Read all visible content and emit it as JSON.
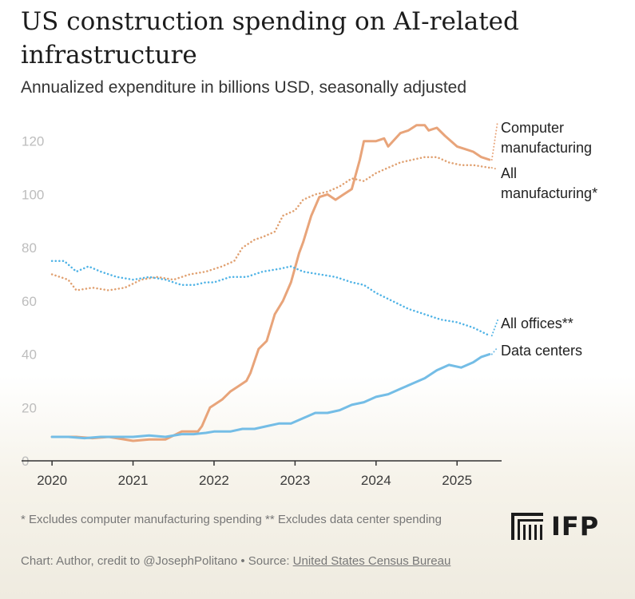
{
  "title": "US construction spending on AI-related infrastructure",
  "subtitle": "Annualized expenditure in billions USD, seasonally adjusted",
  "footnote": "* Excludes computer manufacturing spending ** Excludes data center spending",
  "credit": {
    "prefix": "Chart: Author, credit to @JosephPolitano • Source: ",
    "source_link": "United States Census Bureau"
  },
  "logo": {
    "text": "IFP"
  },
  "colors": {
    "computer_manufacturing": "#e8a47a",
    "all_manufacturing": "#e0a070",
    "all_offices": "#4fb3e6",
    "data_centers": "#74bde6",
    "axis": "#333333",
    "tick": "#bdbdbd"
  },
  "chart_data": {
    "type": "line",
    "title": "US construction spending on AI-related infrastructure",
    "ylabel": "Annualized expenditure in billions USD, seasonally adjusted",
    "xlabel": "",
    "ylim": [
      0,
      125
    ],
    "xlim": [
      2019.9,
      2025.55
    ],
    "yticks": [
      0,
      20,
      40,
      60,
      80,
      100,
      120
    ],
    "xticks": [
      "2020",
      "2021",
      "2022",
      "2023",
      "2024",
      "2025"
    ],
    "series": [
      {
        "name": "Computer manufacturing",
        "style": "solid",
        "x": [
          2020.0,
          2020.3,
          2020.5,
          2020.7,
          2021.0,
          2021.2,
          2021.4,
          2021.6,
          2021.7,
          2021.8,
          2021.85,
          2021.95,
          2022.1,
          2022.2,
          2022.3,
          2022.4,
          2022.45,
          2022.55,
          2022.65,
          2022.75,
          2022.85,
          2022.95,
          2023.05,
          2023.1,
          2023.2,
          2023.3,
          2023.4,
          2023.5,
          2023.6,
          2023.7,
          2023.8,
          2023.85,
          2024.0,
          2024.1,
          2024.15,
          2024.3,
          2024.4,
          2024.5,
          2024.6,
          2024.65,
          2024.75,
          2024.85,
          2025.0,
          2025.1,
          2025.2,
          2025.3,
          2025.4
        ],
        "y": [
          9,
          9,
          8.5,
          9,
          7.5,
          8,
          8,
          11,
          11,
          11,
          13,
          20,
          23,
          26,
          28,
          30,
          33,
          42,
          45,
          55,
          60,
          67,
          78,
          82,
          92,
          99,
          100,
          98,
          100,
          102,
          113,
          120,
          120,
          121,
          118,
          123,
          124,
          126,
          126,
          124,
          125,
          122,
          118,
          117,
          116,
          114,
          113
        ]
      },
      {
        "name": "All manufacturing",
        "style": "dotted",
        "x": [
          2020.0,
          2020.2,
          2020.3,
          2020.5,
          2020.7,
          2020.9,
          2021.1,
          2021.3,
          2021.5,
          2021.7,
          2021.9,
          2022.1,
          2022.25,
          2022.35,
          2022.5,
          2022.6,
          2022.75,
          2022.85,
          2023.0,
          2023.1,
          2023.25,
          2023.4,
          2023.55,
          2023.7,
          2023.85,
          2024.0,
          2024.15,
          2024.3,
          2024.45,
          2024.6,
          2024.75,
          2024.9,
          2025.05,
          2025.2,
          2025.4
        ],
        "y": [
          70,
          68,
          64,
          65,
          64,
          65,
          68,
          69,
          68,
          70,
          71,
          73,
          75,
          80,
          83,
          84,
          86,
          92,
          94,
          98,
          100,
          101,
          103,
          106,
          105,
          108,
          110,
          112,
          113,
          114,
          114,
          112,
          111,
          111,
          110
        ]
      },
      {
        "name": "All offices",
        "style": "dotted",
        "x": [
          2020.0,
          2020.15,
          2020.3,
          2020.45,
          2020.6,
          2020.8,
          2021.0,
          2021.2,
          2021.4,
          2021.6,
          2021.75,
          2021.9,
          2022.0,
          2022.2,
          2022.4,
          2022.6,
          2022.8,
          2022.95,
          2023.1,
          2023.3,
          2023.5,
          2023.7,
          2023.85,
          2024.0,
          2024.2,
          2024.4,
          2024.6,
          2024.8,
          2025.0,
          2025.2,
          2025.4
        ],
        "y": [
          75,
          75,
          71,
          73,
          71,
          69,
          68,
          69,
          68,
          66,
          66,
          67,
          67,
          69,
          69,
          71,
          72,
          73,
          71,
          70,
          69,
          67,
          66,
          63,
          60,
          57,
          55,
          53,
          52,
          50,
          47
        ]
      },
      {
        "name": "Data centers",
        "style": "solid",
        "x": [
          2020.0,
          2020.2,
          2020.4,
          2020.6,
          2020.8,
          2021.0,
          2021.2,
          2021.4,
          2021.6,
          2021.75,
          2021.9,
          2022.0,
          2022.2,
          2022.35,
          2022.5,
          2022.65,
          2022.8,
          2022.95,
          2023.1,
          2023.25,
          2023.4,
          2023.55,
          2023.7,
          2023.85,
          2024.0,
          2024.15,
          2024.3,
          2024.45,
          2024.6,
          2024.75,
          2024.9,
          2025.05,
          2025.2,
          2025.3,
          2025.4
        ],
        "y": [
          9,
          9,
          8.5,
          9,
          9,
          9,
          9.5,
          9,
          10,
          10,
          10.5,
          11,
          11,
          12,
          12,
          13,
          14,
          14,
          16,
          18,
          18,
          19,
          21,
          22,
          24,
          25,
          27,
          29,
          31,
          34,
          36,
          35,
          37,
          39,
          40
        ]
      }
    ],
    "labels": [
      {
        "series": "Computer manufacturing",
        "lines": [
          "Computer",
          "manufacturing"
        ]
      },
      {
        "series": "All manufacturing",
        "lines": [
          "All",
          "manufacturing*"
        ]
      },
      {
        "series": "All offices",
        "lines": [
          "All offices**"
        ]
      },
      {
        "series": "Data centers",
        "lines": [
          "Data centers"
        ]
      }
    ]
  }
}
